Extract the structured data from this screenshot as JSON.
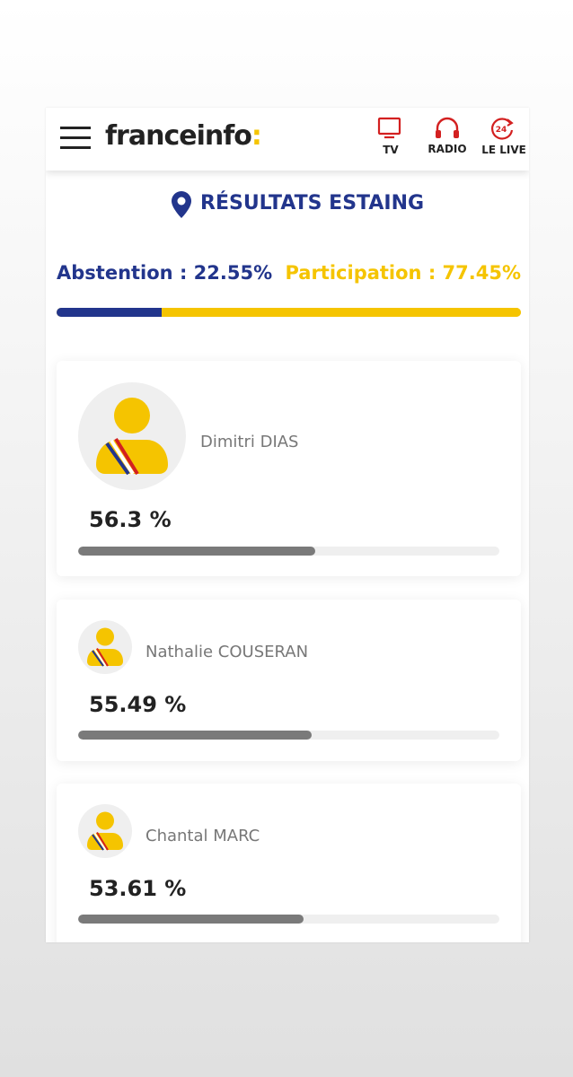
{
  "header": {
    "logo": {
      "name": "franceinfo",
      "mark": ":"
    },
    "nav": [
      "TV",
      "RADIO",
      "LE LIVE"
    ]
  },
  "title": "RÉSULTATS ESTAING",
  "turnout": {
    "abstention": {
      "label": "Abstention :",
      "value": 22.55,
      "value_label": "22.55%"
    },
    "participation": {
      "label": "Participation :",
      "value": 77.45,
      "value_label": "77.45%"
    }
  },
  "candidates": [
    {
      "name": "Dimitri DIAS",
      "value": 56.3,
      "value_label": "56.3 %"
    },
    {
      "name": "Nathalie COUSERAN",
      "value": 55.49,
      "value_label": "55.49 %"
    },
    {
      "name": "Chantal MARC",
      "value": 53.61,
      "value_label": "53.61 %"
    }
  ]
}
